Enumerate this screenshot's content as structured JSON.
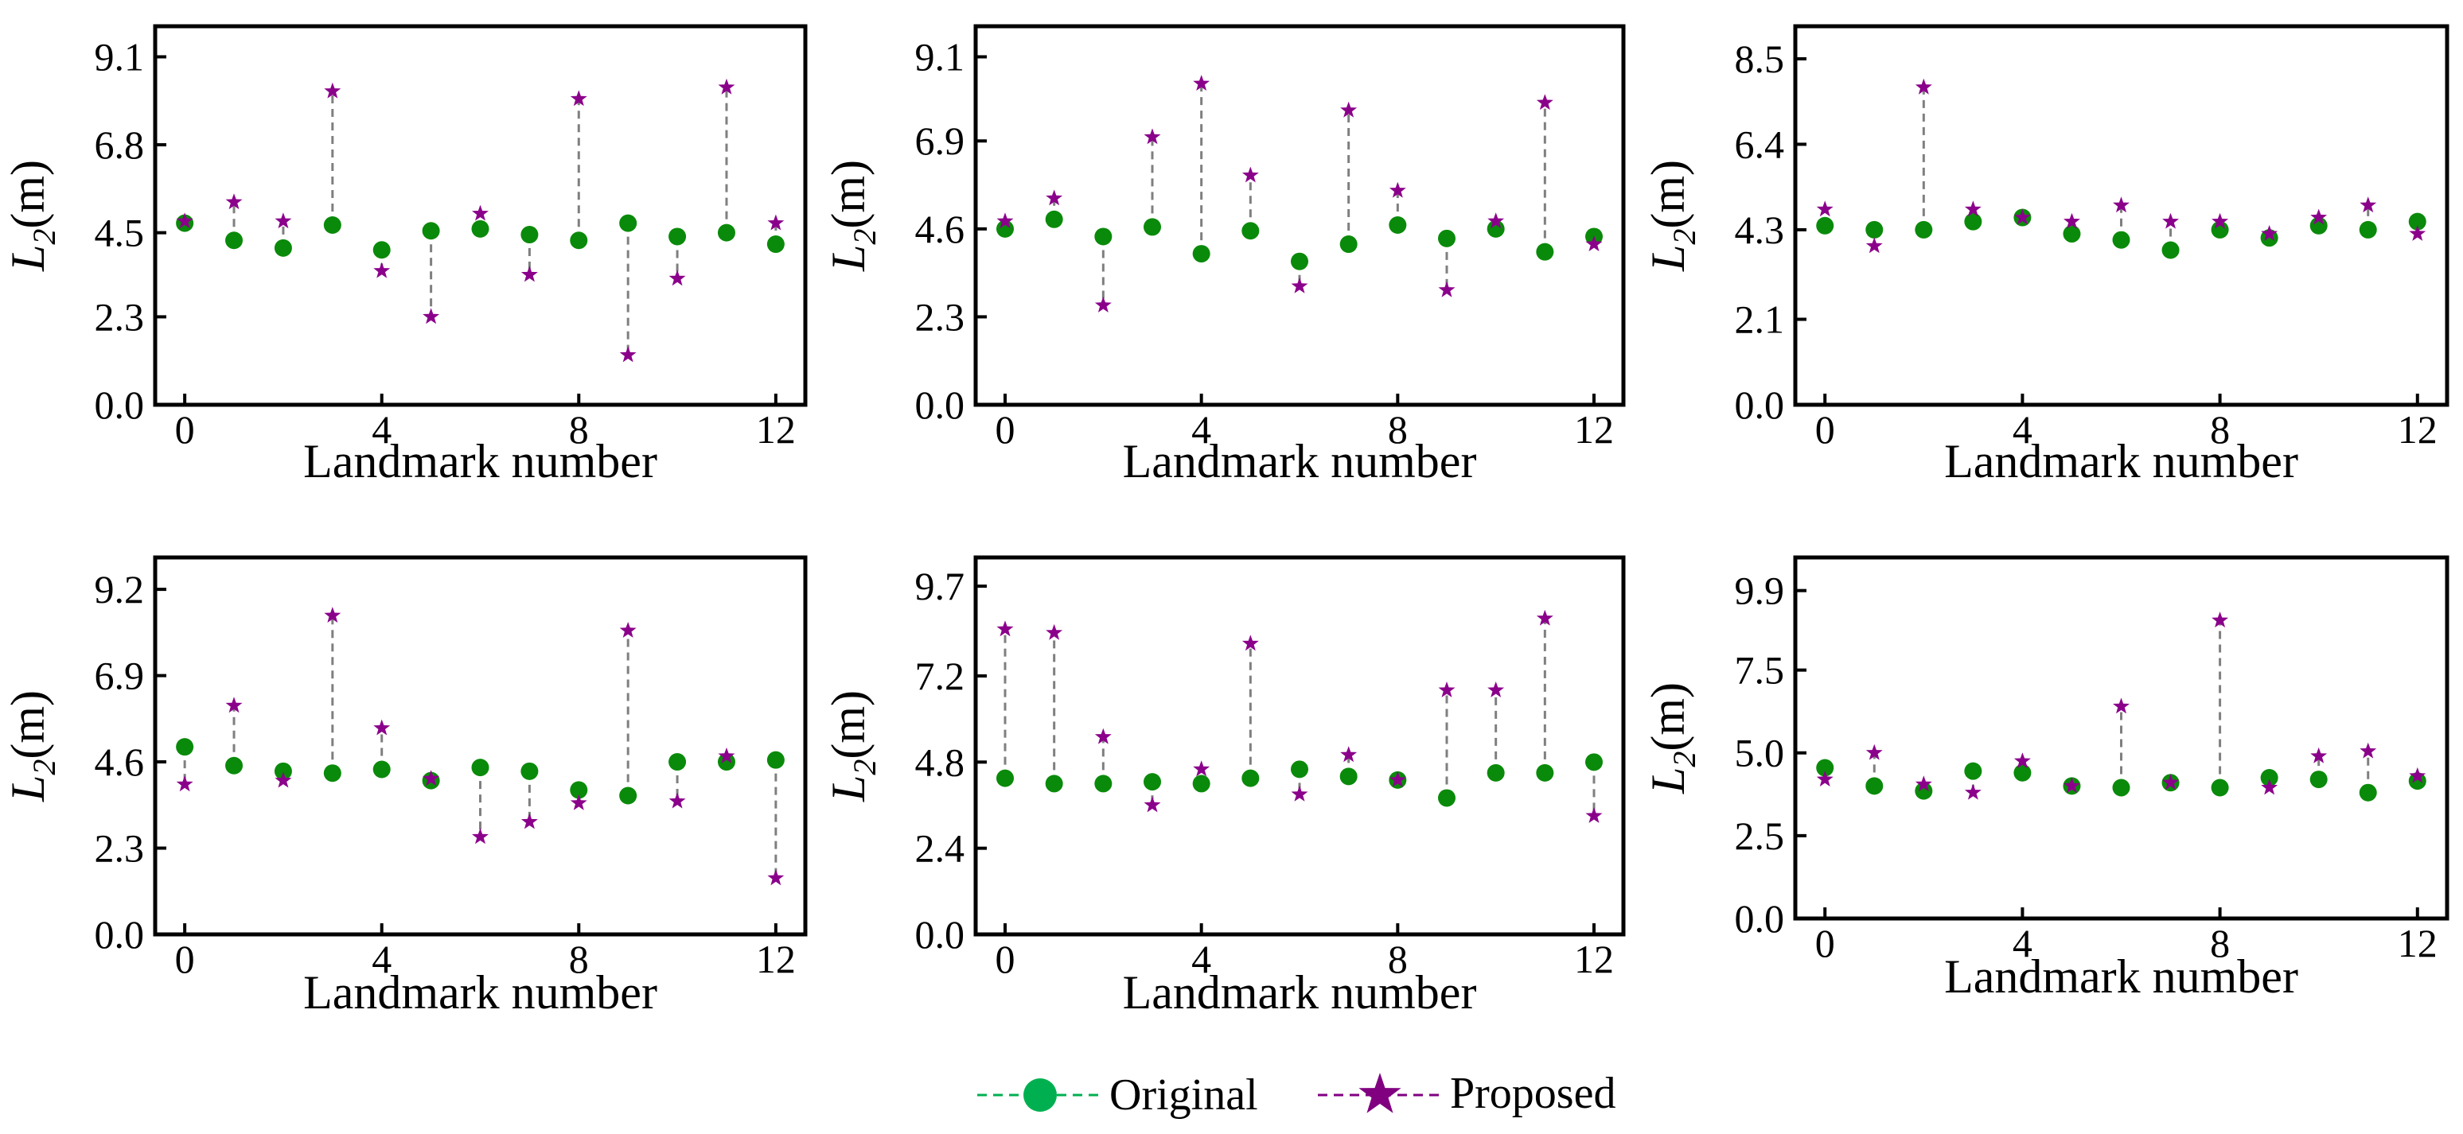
{
  "figure": {
    "legend": {
      "items": [
        {
          "label": "Original",
          "color": "#00b050",
          "line_color": "#00b050",
          "marker": "circle"
        },
        {
          "label": "Proposed",
          "color": "#800080",
          "line_color": "#800080",
          "marker": "star"
        }
      ]
    },
    "colors": {
      "original_point": "#0a8a0a",
      "proposed_point": "#8b008b",
      "connector": "#7f7f7f",
      "axis": "#000000"
    }
  },
  "chart_data": [
    {
      "type": "scatter",
      "xlabel": "Landmark number",
      "ylabel_main": "L",
      "ylabel_sub": "2",
      "ylabel_unit": "(m)",
      "xlim": [
        -0.6,
        12.6
      ],
      "ylim": [
        0,
        9.9
      ],
      "xticks": [
        0,
        4,
        8,
        12
      ],
      "yticks": [
        0.0,
        2.3,
        4.5,
        6.8,
        9.1
      ],
      "ytick_labels": [
        "0.0",
        "2.3",
        "4.5",
        "6.8",
        "9.1"
      ],
      "x": [
        0,
        1,
        2,
        3,
        4,
        5,
        6,
        7,
        8,
        9,
        10,
        11,
        12
      ],
      "series": [
        {
          "name": "Original",
          "values": [
            4.75,
            4.3,
            4.1,
            4.7,
            4.05,
            4.55,
            4.6,
            4.45,
            4.3,
            4.75,
            4.4,
            4.5,
            4.2
          ]
        },
        {
          "name": "Proposed",
          "values": [
            4.8,
            5.3,
            4.8,
            8.2,
            3.5,
            2.3,
            5.0,
            3.4,
            8.0,
            1.3,
            3.3,
            8.3,
            4.75
          ]
        }
      ]
    },
    {
      "type": "scatter",
      "xlabel": "Landmark number",
      "ylabel_main": "L",
      "ylabel_sub": "2",
      "ylabel_unit": "(m)",
      "xlim": [
        -0.6,
        12.6
      ],
      "ylim": [
        0,
        9.9
      ],
      "xticks": [
        0,
        4,
        8,
        12
      ],
      "yticks": [
        0.0,
        2.3,
        4.6,
        6.9,
        9.1
      ],
      "ytick_labels": [
        "0.0",
        "2.3",
        "4.6",
        "6.9",
        "9.1"
      ],
      "x": [
        0,
        1,
        2,
        3,
        4,
        5,
        6,
        7,
        8,
        9,
        10,
        11,
        12
      ],
      "series": [
        {
          "name": "Original",
          "values": [
            4.6,
            4.85,
            4.4,
            4.65,
            3.95,
            4.55,
            3.75,
            4.2,
            4.7,
            4.35,
            4.6,
            4.0,
            4.4
          ]
        },
        {
          "name": "Proposed",
          "values": [
            4.8,
            5.4,
            2.6,
            7.0,
            8.4,
            6.0,
            3.1,
            7.7,
            5.6,
            3.0,
            4.8,
            7.9,
            4.2
          ]
        }
      ]
    },
    {
      "type": "scatter",
      "xlabel": "Landmark number",
      "ylabel_main": "L",
      "ylabel_sub": "2",
      "ylabel_unit": "(m)",
      "xlim": [
        -0.6,
        12.6
      ],
      "ylim": [
        0,
        9.3
      ],
      "xticks": [
        0,
        4,
        8,
        12
      ],
      "yticks": [
        0.0,
        2.1,
        4.3,
        6.4,
        8.5
      ],
      "ytick_labels": [
        "0.0",
        "2.1",
        "4.3",
        "6.4",
        "8.5"
      ],
      "x": [
        0,
        1,
        2,
        3,
        4,
        5,
        6,
        7,
        8,
        9,
        10,
        11,
        12
      ],
      "series": [
        {
          "name": "Original",
          "values": [
            4.4,
            4.3,
            4.3,
            4.5,
            4.6,
            4.2,
            4.05,
            3.8,
            4.3,
            4.1,
            4.4,
            4.3,
            4.5
          ]
        },
        {
          "name": "Proposed",
          "values": [
            4.8,
            3.9,
            7.8,
            4.8,
            4.6,
            4.5,
            4.9,
            4.5,
            4.5,
            4.2,
            4.6,
            4.9,
            4.2
          ]
        }
      ]
    },
    {
      "type": "scatter",
      "xlabel": "Landmark number",
      "ylabel_main": "L",
      "ylabel_sub": "2",
      "ylabel_unit": "(m)",
      "xlim": [
        -0.6,
        12.6
      ],
      "ylim": [
        0,
        10.05
      ],
      "xticks": [
        0,
        4,
        8,
        12
      ],
      "yticks": [
        0.0,
        2.3,
        4.6,
        6.9,
        9.2
      ],
      "ytick_labels": [
        "0.0",
        "2.3",
        "4.6",
        "6.9",
        "9.2"
      ],
      "x": [
        0,
        1,
        2,
        3,
        4,
        5,
        6,
        7,
        8,
        9,
        10,
        11,
        12
      ],
      "series": [
        {
          "name": "Original",
          "values": [
            5.0,
            4.5,
            4.35,
            4.3,
            4.4,
            4.1,
            4.45,
            4.35,
            3.85,
            3.7,
            4.6,
            4.6,
            4.65
          ]
        },
        {
          "name": "Proposed",
          "values": [
            4.0,
            6.1,
            4.1,
            8.5,
            5.5,
            4.15,
            2.6,
            3.0,
            3.5,
            8.1,
            3.55,
            4.75,
            1.5
          ]
        }
      ]
    },
    {
      "type": "scatter",
      "xlabel": "Landmark number",
      "ylabel_main": "L",
      "ylabel_sub": "2",
      "ylabel_unit": "(m)",
      "xlim": [
        -0.6,
        12.6
      ],
      "ylim": [
        0,
        10.5
      ],
      "xticks": [
        0,
        4,
        8,
        12
      ],
      "yticks": [
        0.0,
        2.4,
        4.8,
        7.2,
        9.7
      ],
      "ytick_labels": [
        "0.0",
        "2.4",
        "4.8",
        "7.2",
        "9.7"
      ],
      "x": [
        0,
        1,
        2,
        3,
        4,
        5,
        6,
        7,
        8,
        9,
        10,
        11,
        12
      ],
      "series": [
        {
          "name": "Original",
          "values": [
            4.35,
            4.2,
            4.2,
            4.25,
            4.2,
            4.35,
            4.6,
            4.4,
            4.3,
            3.8,
            4.5,
            4.5,
            4.8
          ]
        },
        {
          "name": "Proposed",
          "values": [
            8.5,
            8.4,
            5.5,
            3.6,
            4.6,
            8.1,
            3.9,
            5.0,
            4.3,
            6.8,
            6.8,
            8.8,
            3.3
          ]
        }
      ]
    },
    {
      "type": "scatter",
      "xlabel": "Landmark number",
      "ylabel_main": "L",
      "ylabel_sub": "2",
      "ylabel_unit": "(m)",
      "xlim": [
        -0.6,
        12.6
      ],
      "ylim": [
        0,
        10.9
      ],
      "xticks": [
        0,
        4,
        8,
        12
      ],
      "yticks": [
        0.0,
        2.5,
        5.0,
        7.5,
        9.9
      ],
      "ytick_labels": [
        "0.0",
        "2.5",
        "5.0",
        "7.5",
        "9.9"
      ],
      "x": [
        0,
        1,
        2,
        3,
        4,
        5,
        6,
        7,
        8,
        9,
        10,
        11,
        12
      ],
      "series": [
        {
          "name": "Original",
          "values": [
            4.55,
            4.0,
            3.85,
            4.45,
            4.4,
            4.0,
            3.95,
            4.1,
            3.95,
            4.25,
            4.2,
            3.8,
            4.15
          ]
        },
        {
          "name": "Proposed",
          "values": [
            4.2,
            5.0,
            4.05,
            3.8,
            4.75,
            4.0,
            6.4,
            4.1,
            9.0,
            3.95,
            4.9,
            5.05,
            4.3
          ]
        }
      ]
    }
  ]
}
